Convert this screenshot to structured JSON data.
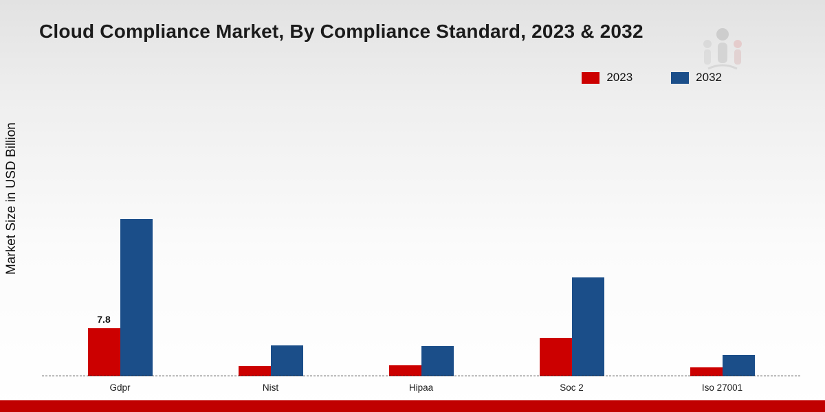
{
  "title": "Cloud Compliance Market, By Compliance Standard, 2023 & 2032",
  "ylabel": "Market Size in USD Billion",
  "colors": {
    "series_2023": "#cc0000",
    "series_2032": "#1b4e89",
    "bottom_strip": "#c00000"
  },
  "legend": {
    "items": [
      {
        "label": "2023",
        "color": "#cc0000"
      },
      {
        "label": "2032",
        "color": "#1b4e89"
      }
    ]
  },
  "chart_data": {
    "type": "bar",
    "categories": [
      "Gdpr",
      "Nist",
      "Hipaa",
      "Soc 2",
      "Iso 27001"
    ],
    "series": [
      {
        "name": "2023",
        "color": "#cc0000",
        "values": [
          7.8,
          1.7,
          1.8,
          6.2,
          1.5
        ]
      },
      {
        "name": "2032",
        "color": "#1b4e89",
        "values": [
          25.4,
          5.0,
          4.9,
          16.0,
          3.4
        ]
      }
    ],
    "annotations": [
      {
        "category": "Gdpr",
        "series": "2023",
        "text": "7.8"
      }
    ],
    "xlabel": "",
    "ylabel": "Market Size in USD Billion",
    "ylim": [
      0,
      28
    ],
    "grid": false,
    "legend_position": "top-right",
    "baseline_style": "dashed"
  }
}
